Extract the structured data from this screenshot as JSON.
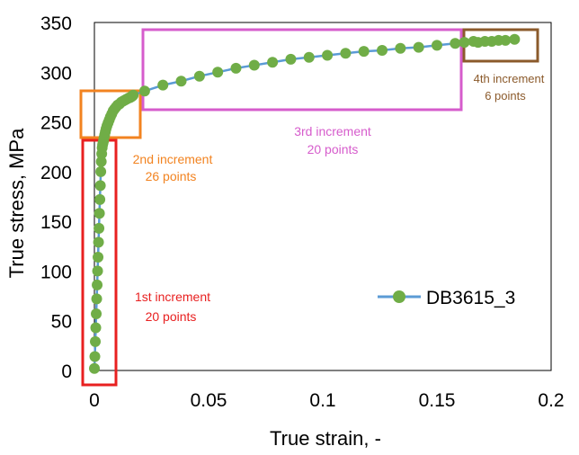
{
  "chart_data": {
    "type": "scatter",
    "title": "",
    "xlabel": "True strain, -",
    "ylabel": "True stress, MPa",
    "xlim": [
      0,
      0.2
    ],
    "ylim": [
      0,
      350
    ],
    "x_ticks": [
      "0",
      "0.05",
      "0.1",
      "0.15",
      "0.2"
    ],
    "y_ticks": [
      "0",
      "50",
      "100",
      "150",
      "200",
      "250",
      "300",
      "350"
    ],
    "x_tick_values": [
      0,
      0.05,
      0.1,
      0.15,
      0.2
    ],
    "y_tick_values": [
      0,
      50,
      100,
      150,
      200,
      250,
      300,
      350
    ],
    "grid": false,
    "legend_position": "right",
    "series": [
      {
        "name": "DB3615_3",
        "line_color": "#5b9bd5",
        "marker_color": "#70ad47",
        "x": [
          0,
          0.0002,
          0.0004,
          0.0006,
          0.0008,
          0.001,
          0.0012,
          0.0014,
          0.0016,
          0.0018,
          0.002,
          0.0022,
          0.0024,
          0.0026,
          0.0028,
          0.003,
          0.0032,
          0.0034,
          0.0036,
          0.0038,
          0.004,
          0.0042,
          0.0045,
          0.0048,
          0.0051,
          0.0055,
          0.006,
          0.0065,
          0.007,
          0.0076,
          0.0082,
          0.0088,
          0.0095,
          0.0102,
          0.011,
          0.0118,
          0.0126,
          0.0134,
          0.0142,
          0.015,
          0.0156,
          0.016,
          0.0163,
          0.0166,
          0.0168,
          0.017,
          0.022,
          0.03,
          0.038,
          0.046,
          0.054,
          0.062,
          0.07,
          0.078,
          0.086,
          0.094,
          0.102,
          0.11,
          0.118,
          0.126,
          0.134,
          0.142,
          0.15,
          0.158,
          0.162,
          0.166,
          0.168,
          0.171,
          0.174,
          0.177,
          0.18,
          0.184
        ],
        "y": [
          2,
          14,
          29,
          43,
          57,
          72,
          86,
          100,
          114,
          129,
          143,
          158,
          172,
          186,
          200,
          210,
          218,
          224,
          227,
          229,
          231,
          234,
          237,
          240,
          243,
          246,
          249,
          252,
          255,
          258,
          261,
          263,
          265,
          267,
          268,
          270,
          271,
          272,
          273,
          274,
          274.5,
          275,
          275.5,
          276,
          276.5,
          277,
          281,
          287,
          291,
          296,
          300,
          304,
          307,
          310,
          313,
          315,
          317,
          319,
          321,
          322,
          324,
          325,
          327,
          329,
          330,
          331,
          330,
          331,
          331,
          332,
          332,
          333
        ]
      }
    ],
    "annotations": [
      {
        "text": "1st increment",
        "text2": "20 points",
        "color": "#e82020"
      },
      {
        "text": "2nd increment",
        "text2": "26 points",
        "color": "#f28320"
      },
      {
        "text": "3rd increment",
        "text2": "20 points",
        "color": "#d65ccc"
      },
      {
        "text": "4th increment",
        "text2": "6 points",
        "color": "#8b5a2b"
      }
    ]
  }
}
